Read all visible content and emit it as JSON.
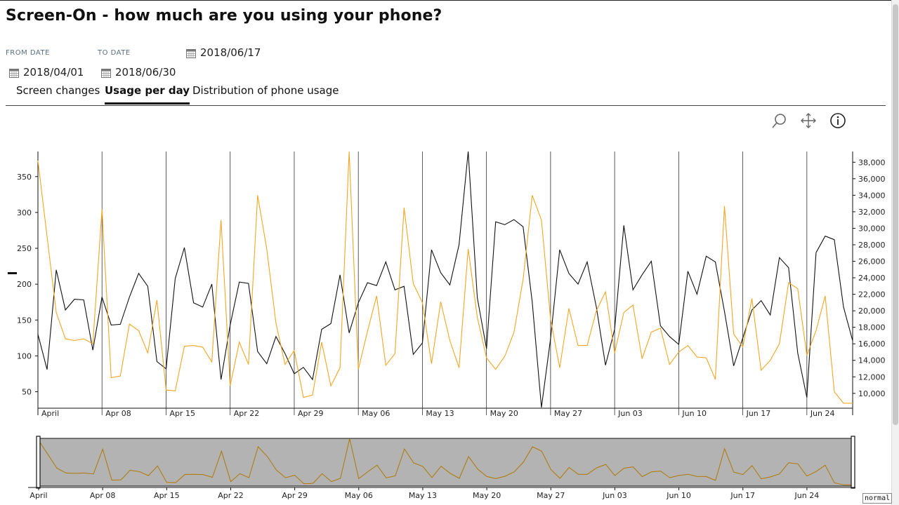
{
  "title": "Screen-On - how much are you using your phone?",
  "filters": {
    "from_label": "FROM DATE",
    "to_label": "TO DATE",
    "selected_date": "2018/06/17",
    "from_value": "2018/04/01",
    "to_value": "2018/06/30"
  },
  "tabs": [
    {
      "label": "Screen changes",
      "active": false
    },
    {
      "label": "Usage per day",
      "active": true
    },
    {
      "label": "Distribution of phone usage",
      "active": false
    }
  ],
  "toolbar": {
    "icons": [
      "zoom-icon",
      "pan-icon",
      "info-icon"
    ]
  },
  "mode_badge": "normal",
  "colors": {
    "changes_line": "#111111",
    "usage_line": "#f5a623",
    "navigator_fill": "#b3b3b3"
  },
  "chart_data": {
    "type": "line",
    "x_start": "2018-04-01",
    "x_end": "2018-06-30",
    "x_tick_labels": [
      "April",
      "Apr 08",
      "Apr 15",
      "Apr 22",
      "Apr 29",
      "May 06",
      "May 13",
      "May 20",
      "May 27",
      "Jun 03",
      "Jun 10",
      "Jun 17",
      "Jun 24"
    ],
    "y_left": {
      "ticks": [
        50,
        100,
        150,
        200,
        250,
        300,
        350
      ],
      "range": [
        27,
        385
      ]
    },
    "y_right": {
      "ticks": [
        "10,000",
        "12,000",
        "14,000",
        "16,000",
        "18,000",
        "20,000",
        "22,000",
        "24,000",
        "26,000",
        "28,000",
        "30,000",
        "32,000",
        "34,000",
        "36,000",
        "38,000"
      ],
      "range": [
        8200,
        39300
      ]
    },
    "grid": "vertical lines at weekly ticks",
    "series": [
      {
        "axis": "left",
        "color": "#111111",
        "values": [
          130,
          81,
          220,
          164,
          179,
          178,
          108,
          182,
          143,
          144,
          182,
          215,
          197,
          92,
          82,
          208,
          251,
          174,
          168,
          200,
          67,
          143,
          203,
          201,
          106,
          89,
          127,
          103,
          75,
          84,
          67,
          137,
          145,
          213,
          132,
          174,
          202,
          198,
          231,
          192,
          197,
          102,
          118,
          248,
          216,
          199,
          255,
          385,
          181,
          110,
          287,
          283,
          290,
          280,
          175,
          28,
          124,
          248,
          215,
          200,
          231,
          168,
          87,
          137,
          282,
          192,
          213,
          232,
          142,
          127,
          116,
          218,
          186,
          239,
          231,
          162,
          86,
          125,
          164,
          177,
          157,
          237,
          223,
          104,
          42,
          244,
          267,
          262,
          168,
          121
        ]
      },
      {
        "axis": "right",
        "color": "#f5a623",
        "values": [
          38200,
          29000,
          19800,
          16600,
          16400,
          16600,
          16000,
          32300,
          11900,
          12100,
          18400,
          17600,
          14900,
          21300,
          10400,
          10300,
          15700,
          15800,
          15600,
          13800,
          31000,
          10900,
          16200,
          13500,
          34000,
          27500,
          18500,
          13500,
          15200,
          9500,
          9800,
          16200,
          10900,
          13100,
          39300,
          12900,
          17500,
          21800,
          13400,
          14800,
          32500,
          23300,
          21000,
          13600,
          21100,
          16400,
          13100,
          27500,
          19200,
          14300,
          12900,
          14500,
          17400,
          23800,
          34000,
          31000,
          19000,
          13100,
          20300,
          15800,
          15800,
          20000,
          22300,
          14900,
          19800,
          20700,
          14200,
          17400,
          17900,
          13500,
          15000,
          15800,
          14400,
          14300,
          11700,
          32700,
          17200,
          15600,
          21500,
          12800,
          14000,
          16000,
          23400,
          22700,
          14600,
          17600,
          21800,
          10200,
          8800,
          8800
        ]
      }
    ]
  }
}
